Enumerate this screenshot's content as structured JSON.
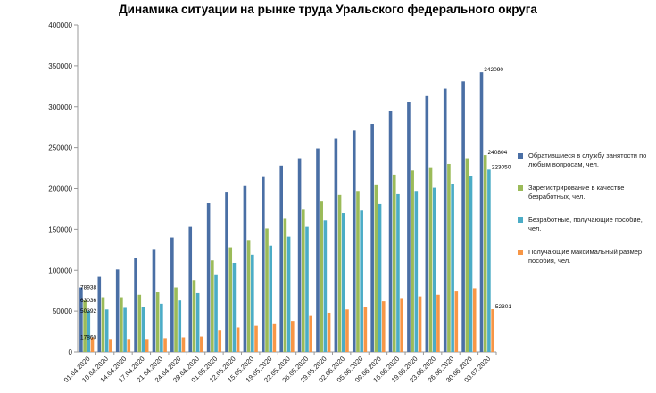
{
  "chart_data": {
    "type": "bar",
    "title": "Динамика ситуации  на рынке труда Уральского федерального округа",
    "xlabel": "",
    "ylabel": "",
    "ylim": [
      0,
      400000
    ],
    "yticks": [
      "0",
      "50000",
      "100000",
      "150000",
      "200000",
      "250000",
      "300000",
      "350000",
      "400000"
    ],
    "grid": false,
    "legend_position": "right",
    "categories": [
      "01.04.2020",
      "10.04.2020",
      "14.04.2020",
      "17.04.2020",
      "21.04.2020",
      "24.04.2020",
      "28.04.2020",
      "01.05.2020",
      "12.05.2020",
      "15.05.2020",
      "19.05.2020",
      "22.05.2020",
      "26.05.2020",
      "29.05.2020",
      "02.06.2020",
      "05.06.2020",
      "09.06.2020",
      "16.06.2020",
      "19.06.2020",
      "23.06.2020",
      "26.06.2020",
      "30.06.2020",
      "03.07.2020"
    ],
    "series": [
      {
        "name": "Обратившиеся в службу занятости по любым вопросам, чел.",
        "color": "#4a6fa5",
        "values": [
          78938,
          92000,
          101000,
          115000,
          126000,
          140000,
          153000,
          182000,
          195000,
          203000,
          214000,
          228000,
          237000,
          249000,
          261000,
          271000,
          279000,
          295000,
          306000,
          313000,
          322000,
          331000,
          342090
        ],
        "labels": {
          "0": "78938",
          "22": "342090"
        }
      },
      {
        "name": "Зарегистрирование в качестве безработных, чел.",
        "color": "#9bbb59",
        "values": [
          63036,
          67000,
          67000,
          70000,
          73000,
          79000,
          88000,
          112000,
          128000,
          137000,
          151000,
          163000,
          174000,
          184000,
          192000,
          197000,
          204000,
          217000,
          222000,
          226000,
          230000,
          237000,
          240804
        ],
        "labels": {
          "0": "63036",
          "22": "240804"
        }
      },
      {
        "name": "Безработные, получающие пособие, чел.",
        "color": "#4bacc6",
        "values": [
          50392,
          52000,
          54000,
          55000,
          59000,
          63000,
          72000,
          94000,
          109000,
          119000,
          130000,
          141000,
          153000,
          161000,
          170000,
          173000,
          181000,
          193000,
          197000,
          201000,
          205000,
          215000,
          223050
        ],
        "labels": {
          "0": "50392",
          "22": "223050"
        }
      },
      {
        "name": "Получающие максимальный размер пособия, чел.",
        "color": "#f79646",
        "values": [
          17860,
          16000,
          16000,
          16000,
          17000,
          18000,
          19000,
          27000,
          30000,
          32000,
          34000,
          38000,
          44000,
          48000,
          52000,
          55000,
          62000,
          66000,
          68000,
          70000,
          74000,
          78000,
          52301
        ],
        "labels": {
          "0": "17860",
          "22": "52301"
        }
      }
    ]
  }
}
